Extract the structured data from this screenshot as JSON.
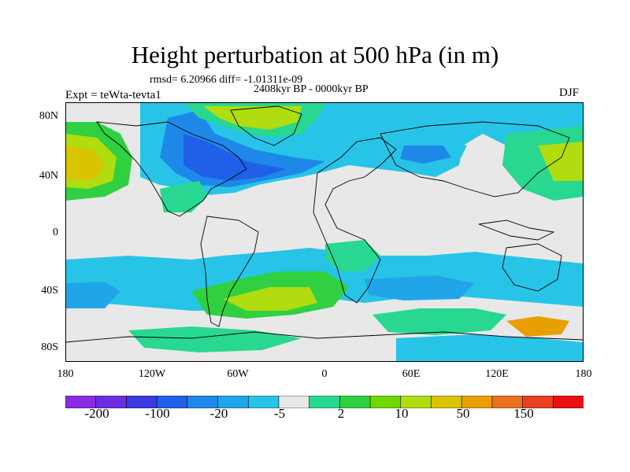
{
  "title": "Height perturbation at 500 hPa (in m)",
  "stats": "rmsd= 6.20966  diff= -1.01311e-09",
  "period": "2408kyr BP - 0000kyr BP",
  "experiment": "Expt = teWta-tevta1",
  "season": "DJF",
  "y_labels": [
    "80N",
    "40N",
    "0",
    "40S",
    "80S"
  ],
  "x_labels": [
    "180",
    "120W",
    "60W",
    "0",
    "60E",
    "120E",
    "180"
  ],
  "colorbar": {
    "colors": [
      "#8a2be2",
      "#6a2ee0",
      "#3a3ae0",
      "#2060e8",
      "#1e88e8",
      "#20a6e8",
      "#28c4e8",
      "#e8e8e8",
      "#28d890",
      "#30d040",
      "#70d800",
      "#b0dc10",
      "#d8c400",
      "#e8a000",
      "#e87020",
      "#e84020",
      "#e81010"
    ],
    "tick_labels": [
      "-200",
      "-100",
      "-20",
      "-5",
      "2",
      "10",
      "50",
      "150"
    ]
  },
  "colors": {
    "neutral": "#e8e8e8",
    "coast": "#000000"
  }
}
